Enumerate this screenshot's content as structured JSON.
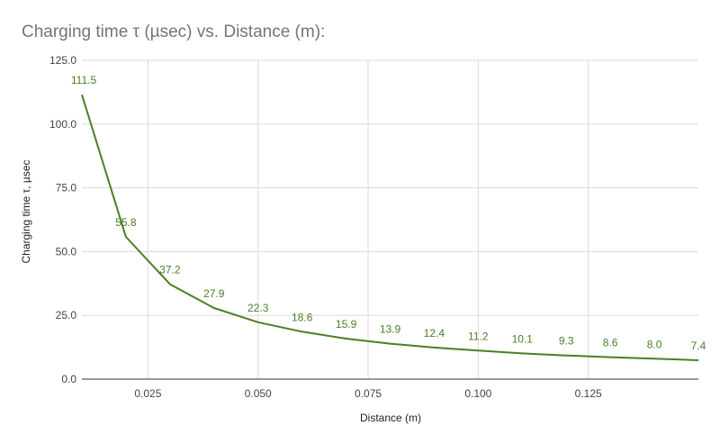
{
  "chart_data": {
    "type": "line",
    "title": "Charging time τ (µsec) vs. Distance (m):",
    "xlabel": "Distance (m)",
    "ylabel": "Charging time τ, µsec",
    "x": [
      0.01,
      0.02,
      0.03,
      0.04,
      0.05,
      0.06,
      0.07,
      0.08,
      0.09,
      0.1,
      0.11,
      0.12,
      0.13,
      0.14,
      0.15
    ],
    "series": [
      {
        "color": "#4a7f26",
        "values": [
          111.5,
          55.8,
          37.2,
          27.9,
          22.3,
          18.6,
          15.9,
          13.9,
          12.4,
          11.2,
          10.1,
          9.3,
          8.6,
          8.0,
          7.4
        ],
        "labels": [
          "111.5",
          "55.8",
          "37.2",
          "27.9",
          "22.3",
          "18.6",
          "15.9",
          "13.9",
          "12.4",
          "11.2",
          "10.1",
          "9.3",
          "8.6",
          "8.0",
          "7.4"
        ]
      }
    ],
    "xlim": [
      0.01,
      0.15
    ],
    "ylim": [
      0,
      125
    ],
    "xticks": [
      0.025,
      0.05,
      0.075,
      0.1,
      0.125
    ],
    "xtick_labels": [
      "0.025",
      "0.050",
      "0.075",
      "0.100",
      "0.125"
    ],
    "yticks": [
      0,
      25,
      50,
      75,
      100,
      125
    ],
    "ytick_labels": [
      "0.0",
      "25.0",
      "50.0",
      "75.0",
      "100.0",
      "125.0"
    ],
    "grid": true,
    "legend": "none"
  }
}
